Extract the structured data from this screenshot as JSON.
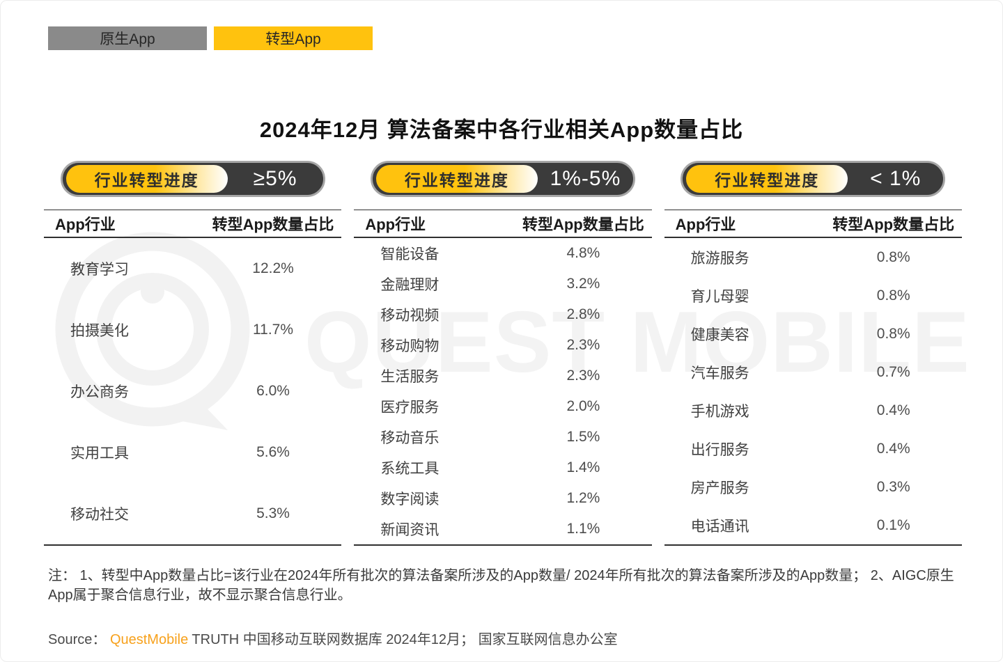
{
  "tabs": [
    {
      "label": "原生App",
      "active": false
    },
    {
      "label": "转型App",
      "active": true
    }
  ],
  "title": "2024年12月 算法备案中各行业相关App数量占比",
  "colors": {
    "brand_yellow": "#ffc20e",
    "tab_gray": "#8a8a8a",
    "pill_dark": "#3b3b3b",
    "source_orange": "#f7a11c"
  },
  "columns": [
    {
      "pill_label": "行业转型进度",
      "pill_value": "≥5%",
      "headers": [
        "App行业",
        "转型App数量占比"
      ],
      "rows": [
        {
          "industry": "教育学习",
          "share": "12.2%"
        },
        {
          "industry": "拍摄美化",
          "share": "11.7%"
        },
        {
          "industry": "办公商务",
          "share": "6.0%"
        },
        {
          "industry": "实用工具",
          "share": "5.6%"
        },
        {
          "industry": "移动社交",
          "share": "5.3%"
        }
      ]
    },
    {
      "pill_label": "行业转型进度",
      "pill_value": "1%-5%",
      "headers": [
        "App行业",
        "转型App数量占比"
      ],
      "rows": [
        {
          "industry": "智能设备",
          "share": "4.8%"
        },
        {
          "industry": "金融理财",
          "share": "3.2%"
        },
        {
          "industry": "移动视频",
          "share": "2.8%"
        },
        {
          "industry": "移动购物",
          "share": "2.3%"
        },
        {
          "industry": "生活服务",
          "share": "2.3%"
        },
        {
          "industry": "医疗服务",
          "share": "2.0%"
        },
        {
          "industry": "移动音乐",
          "share": "1.5%"
        },
        {
          "industry": "系统工具",
          "share": "1.4%"
        },
        {
          "industry": "数字阅读",
          "share": "1.2%"
        },
        {
          "industry": "新闻资讯",
          "share": "1.1%"
        }
      ]
    },
    {
      "pill_label": "行业转型进度",
      "pill_value": "< 1%",
      "headers": [
        "App行业",
        "转型App数量占比"
      ],
      "rows": [
        {
          "industry": "旅游服务",
          "share": "0.8%"
        },
        {
          "industry": "育儿母婴",
          "share": "0.8%"
        },
        {
          "industry": "健康美容",
          "share": "0.8%"
        },
        {
          "industry": "汽车服务",
          "share": "0.7%"
        },
        {
          "industry": "手机游戏",
          "share": "0.4%"
        },
        {
          "industry": "出行服务",
          "share": "0.4%"
        },
        {
          "industry": "房产服务",
          "share": "0.3%"
        },
        {
          "industry": "电话通讯",
          "share": "0.1%"
        }
      ]
    }
  ],
  "watermark": {
    "text": "QUEST MOBILE"
  },
  "note": "注： 1、转型中App数量占比=该行业在2024年所有批次的算法备案所涉及的App数量/ 2024年所有批次的算法备案所涉及的App数量； 2、AIGC原生App属于聚合信息行业，故不显示聚合信息行业。",
  "source": {
    "prefix": "Source： ",
    "brand": "QuestMobile",
    "rest": " TRUTH 中国移动互联网数据库 2024年12月； 国家互联网信息办公室"
  },
  "chart_data": [
    {
      "type": "table",
      "title": "行业转型进度 ≥5%",
      "columns": [
        "App行业",
        "转型App数量占比"
      ],
      "rows": [
        [
          "教育学习",
          12.2
        ],
        [
          "拍摄美化",
          11.7
        ],
        [
          "办公商务",
          6.0
        ],
        [
          "实用工具",
          5.6
        ],
        [
          "移动社交",
          5.3
        ]
      ],
      "unit": "%"
    },
    {
      "type": "table",
      "title": "行业转型进度 1%-5%",
      "columns": [
        "App行业",
        "转型App数量占比"
      ],
      "rows": [
        [
          "智能设备",
          4.8
        ],
        [
          "金融理财",
          3.2
        ],
        [
          "移动视频",
          2.8
        ],
        [
          "移动购物",
          2.3
        ],
        [
          "生活服务",
          2.3
        ],
        [
          "医疗服务",
          2.0
        ],
        [
          "移动音乐",
          1.5
        ],
        [
          "系统工具",
          1.4
        ],
        [
          "数字阅读",
          1.2
        ],
        [
          "新闻资讯",
          1.1
        ]
      ],
      "unit": "%"
    },
    {
      "type": "table",
      "title": "行业转型进度 <1%",
      "columns": [
        "App行业",
        "转型App数量占比"
      ],
      "rows": [
        [
          "旅游服务",
          0.8
        ],
        [
          "育儿母婴",
          0.8
        ],
        [
          "健康美容",
          0.8
        ],
        [
          "汽车服务",
          0.7
        ],
        [
          "手机游戏",
          0.4
        ],
        [
          "出行服务",
          0.4
        ],
        [
          "房产服务",
          0.3
        ],
        [
          "电话通讯",
          0.1
        ]
      ],
      "unit": "%"
    }
  ]
}
